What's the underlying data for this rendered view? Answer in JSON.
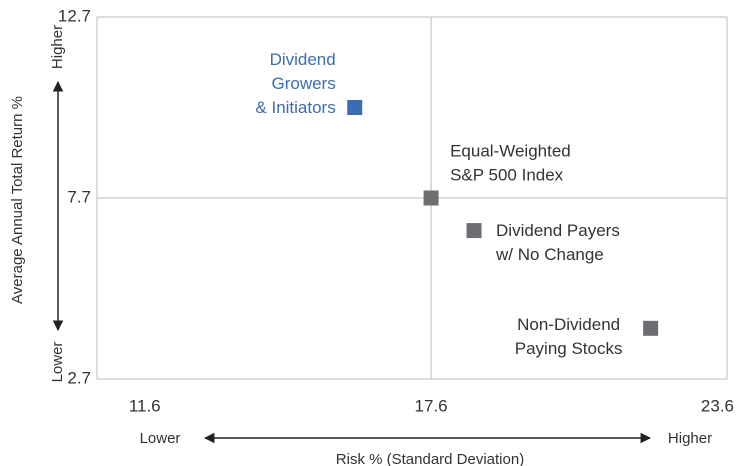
{
  "chart_data": {
    "type": "scatter",
    "x_label": "Risk % (Standard Deviation)",
    "y_label": "Average Annual Total Return %",
    "x_low_label": "Lower",
    "x_high_label": "Higher",
    "y_low_label": "Lower",
    "y_high_label": "Higher",
    "xlim": [
      10.6,
      23.8
    ],
    "ylim": [
      2.7,
      12.7
    ],
    "xticks": [
      11.6,
      17.6,
      23.6
    ],
    "yticks": [
      2.7,
      7.7,
      12.7
    ],
    "reference_lines": {
      "x": 17.6,
      "y": 7.7
    },
    "points": [
      {
        "label": [
          "Dividend",
          "Growers",
          "& Initiators"
        ],
        "x": 16.0,
        "y": 10.2,
        "color": "#3a6db3"
      },
      {
        "label": [
          "Equal-Weighted",
          "S&P 500 Index"
        ],
        "x": 17.6,
        "y": 7.7,
        "color": "#6d6e71"
      },
      {
        "label": [
          "Dividend Payers",
          "w/ No Change"
        ],
        "x": 18.5,
        "y": 6.8,
        "color": "#6d6e71"
      },
      {
        "label": [
          "Non-Dividend",
          "Paying Stocks"
        ],
        "x": 22.2,
        "y": 4.1,
        "color": "#6d6e71"
      }
    ]
  }
}
